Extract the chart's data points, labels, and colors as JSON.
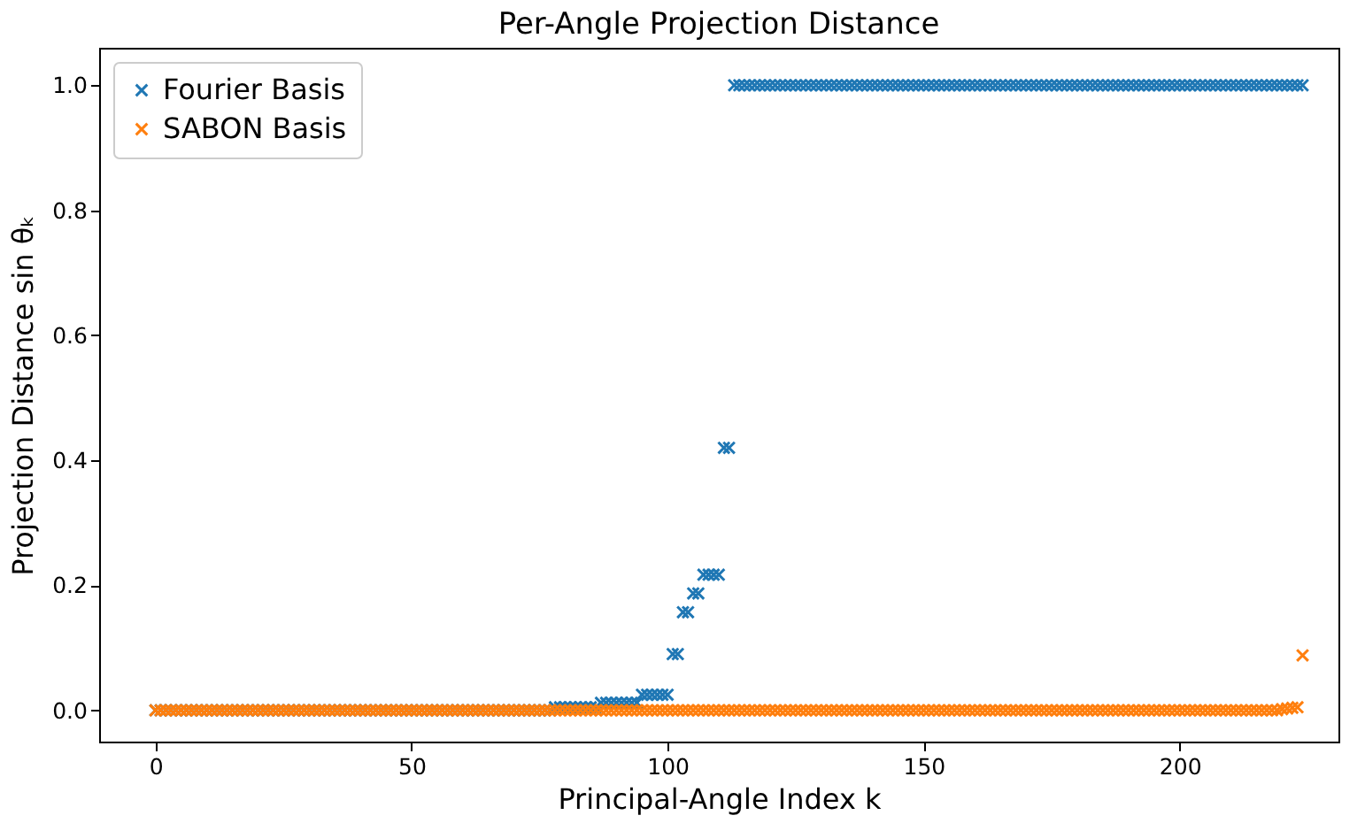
{
  "chart_data": {
    "type": "scatter",
    "title": "Per-Angle Projection Distance",
    "xlabel": "Principal-Angle Index k",
    "ylabel": "Projection Distance  sin θₖ",
    "x": [
      0,
      1,
      2,
      3,
      4,
      5,
      6,
      7,
      8,
      9,
      10,
      11,
      12,
      13,
      14,
      15,
      16,
      17,
      18,
      19,
      20,
      21,
      22,
      23,
      24,
      25,
      26,
      27,
      28,
      29,
      30,
      31,
      32,
      33,
      34,
      35,
      36,
      37,
      38,
      39,
      40,
      41,
      42,
      43,
      44,
      45,
      46,
      47,
      48,
      49,
      50,
      51,
      52,
      53,
      54,
      55,
      56,
      57,
      58,
      59,
      60,
      61,
      62,
      63,
      64,
      65,
      66,
      67,
      68,
      69,
      70,
      71,
      72,
      73,
      74,
      75,
      76,
      77,
      78,
      79,
      80,
      81,
      82,
      83,
      84,
      85,
      86,
      87,
      88,
      89,
      90,
      91,
      92,
      93,
      94,
      95,
      96,
      97,
      98,
      99,
      100,
      101,
      102,
      103,
      104,
      105,
      106,
      107,
      108,
      109,
      110,
      111,
      112,
      113,
      114,
      115,
      116,
      117,
      118,
      119,
      120,
      121,
      122,
      123,
      124,
      125,
      126,
      127,
      128,
      129,
      130,
      131,
      132,
      133,
      134,
      135,
      136,
      137,
      138,
      139,
      140,
      141,
      142,
      143,
      144,
      145,
      146,
      147,
      148,
      149,
      150,
      151,
      152,
      153,
      154,
      155,
      156,
      157,
      158,
      159,
      160,
      161,
      162,
      163,
      164,
      165,
      166,
      167,
      168,
      169,
      170,
      171,
      172,
      173,
      174,
      175,
      176,
      177,
      178,
      179,
      180,
      181,
      182,
      183,
      184,
      185,
      186,
      187,
      188,
      189,
      190,
      191,
      192,
      193,
      194,
      195,
      196,
      197,
      198,
      199,
      200,
      201,
      202,
      203,
      204,
      205,
      206,
      207,
      208,
      209,
      210,
      211,
      212,
      213,
      214,
      215,
      216,
      217,
      218,
      219,
      220,
      221,
      222,
      223,
      224
    ],
    "series": [
      {
        "name": "Fourier Basis",
        "color": "#1f77b4",
        "values": [
          0,
          0,
          0,
          0,
          0,
          0,
          0,
          0,
          0,
          0,
          0,
          0,
          0,
          0,
          0,
          0,
          0,
          0,
          0,
          0,
          0,
          0,
          0,
          0,
          0,
          0,
          0,
          0,
          0,
          0,
          0,
          0,
          0,
          0,
          0,
          0,
          0,
          0,
          0,
          0,
          0,
          0,
          0,
          0,
          0,
          0,
          0,
          0,
          0,
          0,
          0,
          0,
          0,
          0,
          0,
          0,
          0,
          0,
          0,
          0,
          0,
          0,
          0,
          0,
          0,
          0,
          0,
          0,
          0,
          0,
          0,
          0,
          0,
          0,
          0,
          0,
          0,
          0,
          0.005,
          0.005,
          0.005,
          0.005,
          0.005,
          0.005,
          0.005,
          0.005,
          0.005,
          0.012,
          0.012,
          0.012,
          0.012,
          0.012,
          0.012,
          0.012,
          0.012,
          0.025,
          0.025,
          0.025,
          0.025,
          0.025,
          0.025,
          0.09,
          0.09,
          0.157,
          0.157,
          0.187,
          0.187,
          0.217,
          0.217,
          0.217,
          0.217,
          0.42,
          0.42,
          1,
          1,
          1,
          1,
          1,
          1,
          1,
          1,
          1,
          1,
          1,
          1,
          1,
          1,
          1,
          1,
          1,
          1,
          1,
          1,
          1,
          1,
          1,
          1,
          1,
          1,
          1,
          1,
          1,
          1,
          1,
          1,
          1,
          1,
          1,
          1,
          1,
          1,
          1,
          1,
          1,
          1,
          1,
          1,
          1,
          1,
          1,
          1,
          1,
          1,
          1,
          1,
          1,
          1,
          1,
          1,
          1,
          1,
          1,
          1,
          1,
          1,
          1,
          1,
          1,
          1,
          1,
          1,
          1,
          1,
          1,
          1,
          1,
          1,
          1,
          1,
          1,
          1,
          1,
          1,
          1,
          1,
          1,
          1,
          1,
          1,
          1,
          1,
          1,
          1,
          1,
          1,
          1,
          1,
          1,
          1,
          1,
          1,
          1,
          1,
          1,
          1,
          1,
          1,
          1,
          1,
          1,
          1,
          1,
          1,
          1,
          1
        ]
      },
      {
        "name": "SABON Basis",
        "color": "#ff7f0e",
        "values": [
          0,
          0,
          0,
          0,
          0,
          0,
          0,
          0,
          0,
          0,
          0,
          0,
          0,
          0,
          0,
          0,
          0,
          0,
          0,
          0,
          0,
          0,
          0,
          0,
          0,
          0,
          0,
          0,
          0,
          0,
          0,
          0,
          0,
          0,
          0,
          0,
          0,
          0,
          0,
          0,
          0,
          0,
          0,
          0,
          0,
          0,
          0,
          0,
          0,
          0,
          0,
          0,
          0,
          0,
          0,
          0,
          0,
          0,
          0,
          0,
          0,
          0,
          0,
          0,
          0,
          0,
          0,
          0,
          0,
          0,
          0,
          0,
          0,
          0,
          0,
          0,
          0,
          0,
          0,
          0,
          0,
          0,
          0,
          0,
          0,
          0,
          0,
          0,
          0,
          0,
          0,
          0,
          0,
          0,
          0,
          0,
          0,
          0,
          0,
          0,
          0,
          0,
          0,
          0,
          0,
          0,
          0,
          0,
          0,
          0,
          0,
          0,
          0,
          0,
          0,
          0,
          0,
          0,
          0,
          0,
          0,
          0,
          0,
          0,
          0,
          0,
          0,
          0,
          0,
          0,
          0,
          0,
          0,
          0,
          0,
          0,
          0,
          0,
          0,
          0,
          0,
          0,
          0,
          0,
          0,
          0,
          0,
          0,
          0,
          0,
          0,
          0,
          0,
          0,
          0,
          0,
          0,
          0,
          0,
          0,
          0,
          0,
          0,
          0,
          0,
          0,
          0,
          0,
          0,
          0,
          0,
          0,
          0,
          0,
          0,
          0,
          0,
          0,
          0,
          0,
          0,
          0,
          0,
          0,
          0,
          0,
          0,
          0,
          0,
          0,
          0,
          0,
          0,
          0,
          0,
          0,
          0,
          0,
          0,
          0,
          0,
          0,
          0,
          0,
          0,
          0,
          0,
          0,
          0,
          0,
          0,
          0,
          0,
          0,
          0,
          0,
          0,
          0,
          0,
          0,
          0.002,
          0.003,
          0.004,
          0.005,
          0.088
        ]
      }
    ],
    "xlim": [
      -11,
      231
    ],
    "xticks": [
      0,
      50,
      100,
      150,
      200
    ],
    "ylim": [
      -0.05,
      1.06
    ],
    "yticks": [
      {
        "value": 0,
        "label": "0.0"
      },
      {
        "value": 0.2,
        "label": "0.2"
      },
      {
        "value": 0.4,
        "label": "0.4"
      },
      {
        "value": 0.6,
        "label": "0.6"
      },
      {
        "value": 0.8,
        "label": "0.8"
      },
      {
        "value": 1,
        "label": "1.0"
      }
    ],
    "legend": "top left",
    "marker": "cross",
    "grid": false
  }
}
